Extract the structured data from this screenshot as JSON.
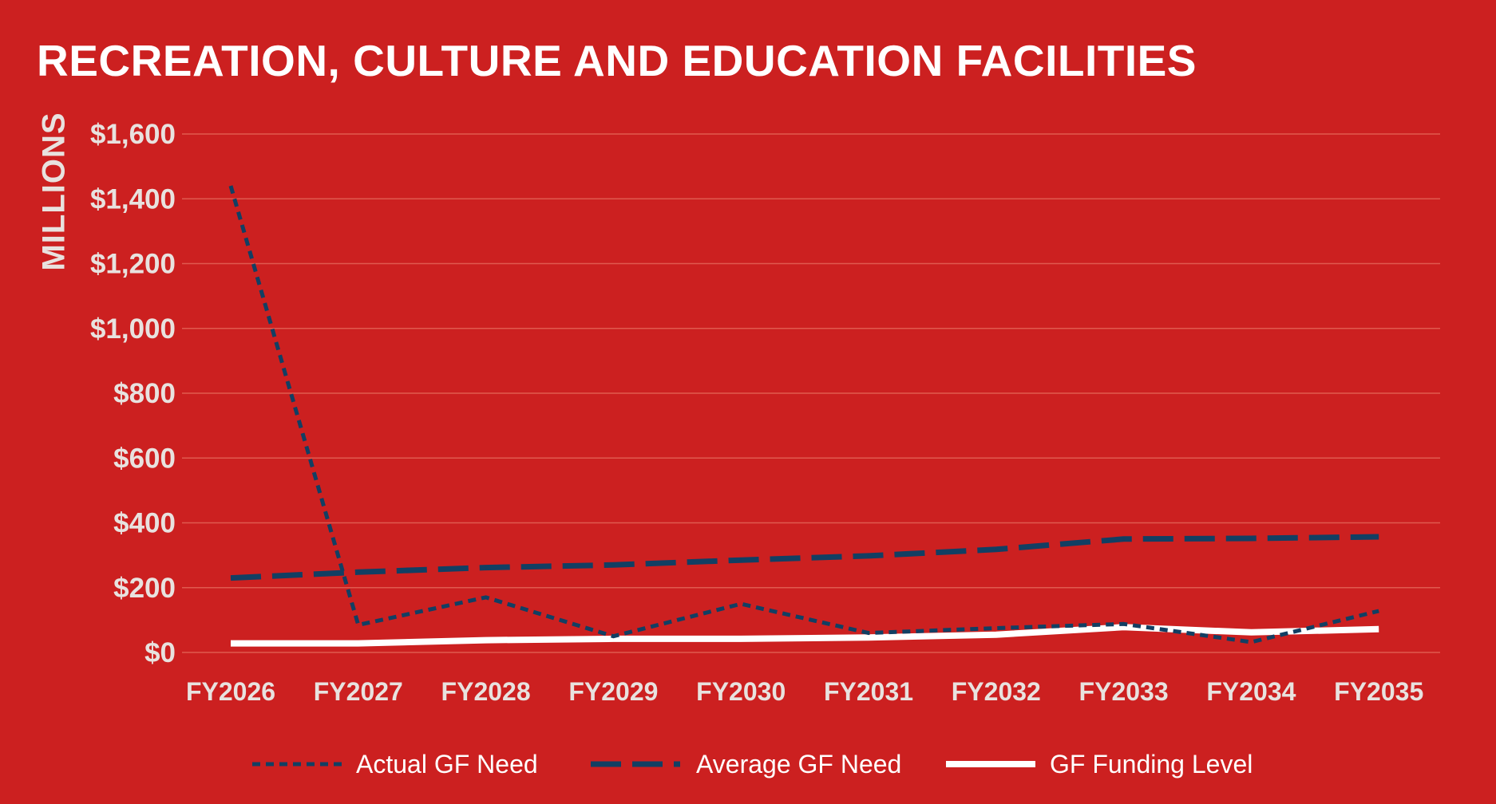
{
  "colors": {
    "background": "#cc2020",
    "actual_need": "#123f63",
    "average_need": "#123f63",
    "funding_level": "#ffffff",
    "grid": "#e05a4f",
    "tick_text": "#e8e2df"
  },
  "chart_data": {
    "type": "line",
    "title": "RECREATION, CULTURE AND EDUCATION FACILITIES",
    "xlabel": "",
    "ylabel": "MILLIONS",
    "categories": [
      "FY2026",
      "FY2027",
      "FY2028",
      "FY2029",
      "FY2030",
      "FY2031",
      "FY2032",
      "FY2033",
      "FY2034",
      "FY2035"
    ],
    "yticks": [
      "$0",
      "$200",
      "$400",
      "$600",
      "$800",
      "$1,000",
      "$1,200",
      "$1,400",
      "$1,600"
    ],
    "ylim": [
      0,
      1600
    ],
    "grid": true,
    "legend_position": "bottom",
    "series": [
      {
        "name": "Actual GF Need",
        "style": "dotted",
        "values": [
          1440,
          85,
          170,
          50,
          150,
          60,
          75,
          88,
          32,
          128
        ]
      },
      {
        "name": "Average GF Need",
        "style": "dashed",
        "values": [
          230,
          248,
          262,
          270,
          285,
          298,
          318,
          350,
          352,
          357
        ]
      },
      {
        "name": "GF Funding Level",
        "style": "solid",
        "values": [
          28,
          28,
          38,
          42,
          42,
          46,
          55,
          78,
          62,
          72
        ]
      }
    ]
  }
}
